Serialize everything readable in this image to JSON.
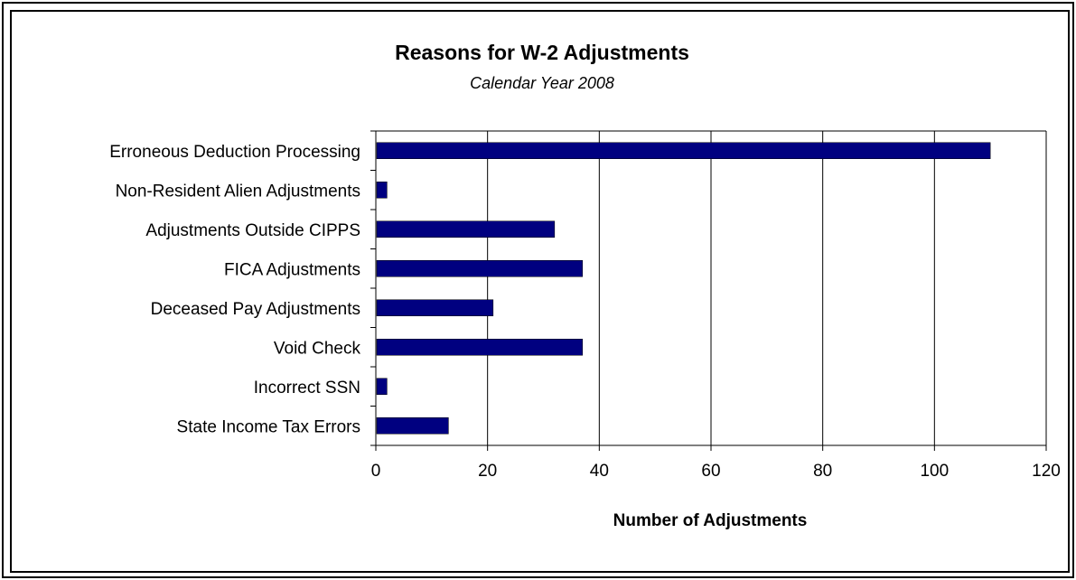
{
  "chart_data": {
    "type": "bar",
    "orientation": "horizontal",
    "title": "Reasons for W-2 Adjustments",
    "subtitle": "Calendar Year 2008",
    "xlabel": "Number of Adjustments",
    "ylabel": "",
    "categories": [
      "Erroneous Deduction Processing",
      "Non-Resident Alien Adjustments",
      "Adjustments Outside CIPPS",
      "FICA Adjustments",
      "Deceased Pay Adjustments",
      "Void Check",
      "Incorrect SSN",
      "State Income Tax Errors"
    ],
    "values": [
      110,
      2,
      32,
      37,
      21,
      37,
      2,
      13
    ],
    "xlim": [
      0,
      120
    ],
    "xticks": [
      0,
      20,
      40,
      60,
      80,
      100,
      120
    ],
    "grid": "vertical",
    "legend": "none",
    "bar_color": "#000080"
  }
}
